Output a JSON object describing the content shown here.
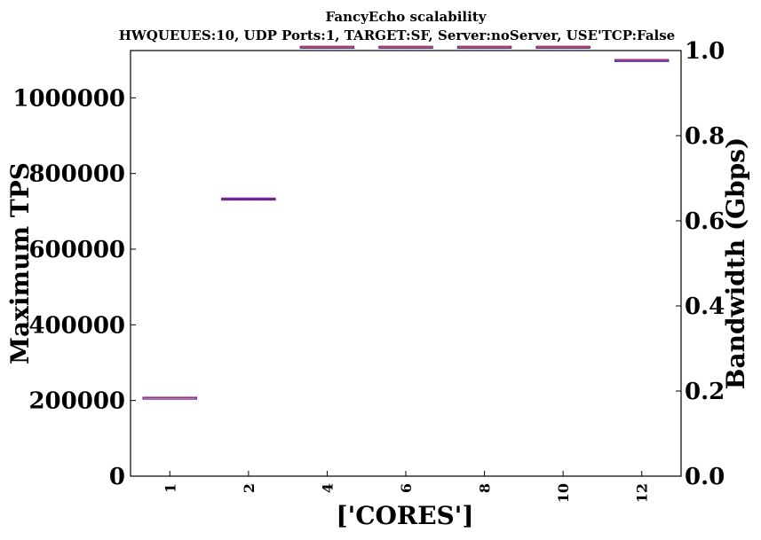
{
  "chart_data": {
    "type": "box",
    "title": "FancyEcho scalability",
    "subtitle": "HWQUEUES:10, UDP Ports:1, TARGET:SF, Server:noServer, USE'TCP:False",
    "xlabel": "['CORES']",
    "ylabel": "Maximum TPS",
    "y2label": "Bandwidth (Gbps)",
    "categories": [
      "1",
      "2",
      "4",
      "6",
      "8",
      "10",
      "12"
    ],
    "series": [
      {
        "values": [
          208000,
          733000,
          1135000,
          1135000,
          1135000,
          1135000,
          1100000
        ],
        "lower": [
          207000,
          730000,
          1134000,
          1134000,
          1134000,
          1134000,
          1099000
        ],
        "upper": [
          208500,
          735000,
          1136000,
          1136000,
          1136000,
          1136000,
          1101000
        ]
      }
    ],
    "ylim": [
      0,
      1125000
    ],
    "y_ticks": [
      "0",
      "200000",
      "400000",
      "600000",
      "800000",
      "1000000"
    ],
    "y_tick_values": [
      0,
      200000,
      400000,
      600000,
      800000,
      1000000
    ],
    "y2lim": [
      0,
      1.0
    ],
    "y2_ticks": [
      "0.0",
      "0.2",
      "0.4",
      "0.6",
      "0.8",
      "1.0"
    ],
    "y2_tick_values": [
      0,
      0.2,
      0.4,
      0.6,
      0.8,
      1.0
    ],
    "colors": {
      "median": "#d62728",
      "box": "#1a1aff",
      "axis": "#000000"
    }
  }
}
